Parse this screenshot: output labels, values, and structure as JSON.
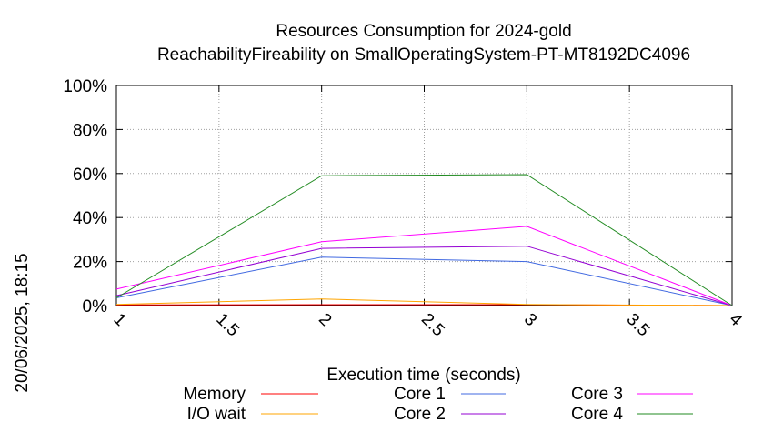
{
  "chart_data": {
    "type": "line",
    "title": "Resources Consumption for 2024-gold",
    "subtitle": "ReachabilityFireability on SmallOperatingSystem-PT-MT8192DC4096",
    "xlabel": "Execution time (seconds)",
    "ylabel": "",
    "side_label": "20/06/2025, 18:15",
    "xlim": [
      1,
      4
    ],
    "ylim": [
      0,
      100
    ],
    "x_ticks": [
      "1",
      "1.5",
      "2",
      "2.5",
      "3",
      "3.5",
      "4"
    ],
    "x_tick_values": [
      1,
      1.5,
      2,
      2.5,
      3,
      3.5,
      4
    ],
    "y_ticks": [
      "0%",
      "20%",
      "40%",
      "60%",
      "80%",
      "100%"
    ],
    "y_tick_values": [
      0,
      20,
      40,
      60,
      80,
      100
    ],
    "grid": true,
    "legend_position": "bottom",
    "series": [
      {
        "name": "Memory",
        "color": "#ff0000",
        "x": [
          1,
          2,
          3,
          4
        ],
        "y": [
          0.3,
          0.4,
          0.4,
          0
        ]
      },
      {
        "name": "I/O wait",
        "color": "#ffa500",
        "x": [
          1,
          2,
          3,
          4
        ],
        "y": [
          0.5,
          3,
          0.5,
          0
        ]
      },
      {
        "name": "Core 1",
        "color": "#4169e1",
        "x": [
          1,
          2,
          3,
          4
        ],
        "y": [
          3.5,
          22,
          20,
          0
        ]
      },
      {
        "name": "Core 2",
        "color": "#9400d3",
        "x": [
          1,
          2,
          3,
          4
        ],
        "y": [
          4.5,
          26,
          27,
          0
        ]
      },
      {
        "name": "Core 3",
        "color": "#ff00ff",
        "x": [
          1,
          2,
          3,
          4
        ],
        "y": [
          7.5,
          29,
          36,
          0
        ]
      },
      {
        "name": "Core 4",
        "color": "#228b22",
        "x": [
          1,
          2,
          3,
          4
        ],
        "y": [
          3.5,
          59,
          59.5,
          0
        ]
      }
    ]
  }
}
